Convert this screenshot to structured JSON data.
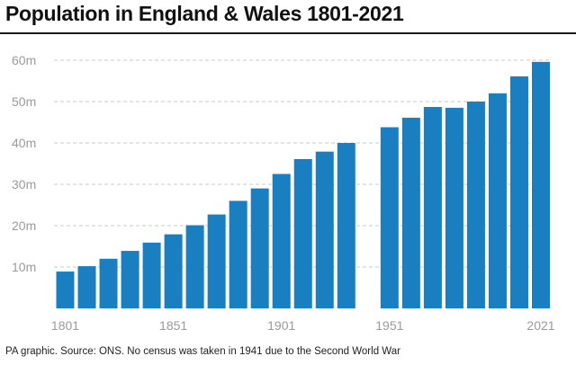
{
  "chart_data": {
    "type": "bar",
    "title": "Population in England & Wales 1801-2021",
    "xlabel": "",
    "ylabel": "",
    "ylim": [
      0,
      60
    ],
    "y_ticks": [
      {
        "value": 10,
        "label": "10m"
      },
      {
        "value": 20,
        "label": "20m"
      },
      {
        "value": 30,
        "label": "30m"
      },
      {
        "value": 40,
        "label": "40m"
      },
      {
        "value": 50,
        "label": "50m"
      },
      {
        "value": 60,
        "label": "60m"
      }
    ],
    "x_tick_labels": [
      "1801",
      "1851",
      "1901",
      "1951",
      "2021"
    ],
    "categories": [
      "1801",
      "1811",
      "1821",
      "1831",
      "1841",
      "1851",
      "1861",
      "1871",
      "1881",
      "1891",
      "1901",
      "1911",
      "1921",
      "1931",
      "1951",
      "1961",
      "1971",
      "1981",
      "1991",
      "2001",
      "2011",
      "2021"
    ],
    "values": [
      8.9,
      10.2,
      12.0,
      13.9,
      15.9,
      17.9,
      20.1,
      22.7,
      26.0,
      29.0,
      32.5,
      36.1,
      37.9,
      40.0,
      43.8,
      46.1,
      48.7,
      48.5,
      50.0,
      52.0,
      56.1,
      59.6
    ],
    "missing_category": "1941",
    "grid": true,
    "bar_color": "#1a7fc1"
  },
  "source_note": "PA graphic. Source: ONS. No census was taken in 1941 due to the Second World War"
}
